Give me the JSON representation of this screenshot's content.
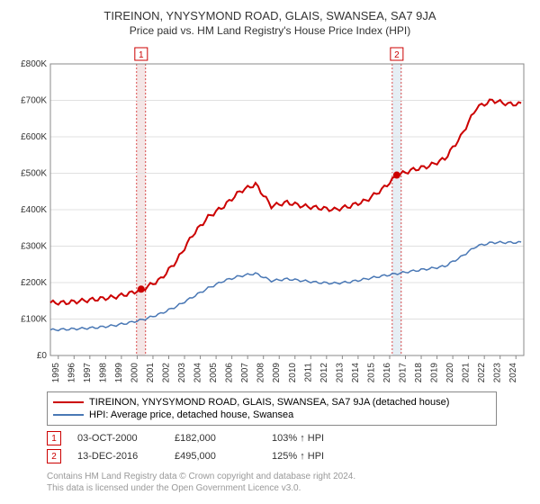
{
  "title": "TIREINON, YNYSYMOND ROAD, GLAIS, SWANSEA, SA7 9JA",
  "subtitle": "Price paid vs. HM Land Registry's House Price Index (HPI)",
  "chart": {
    "type": "line",
    "background_color": "#ffffff",
    "grid_color": "#e0e0e0",
    "axis_color": "#888888",
    "font_size_ticks": 10,
    "ylim": [
      0,
      800000
    ],
    "ytick_step": 100000,
    "ytick_labels": [
      "£0",
      "£100K",
      "£200K",
      "£300K",
      "£400K",
      "£500K",
      "£600K",
      "£700K",
      "£800K"
    ],
    "years": [
      1995,
      1996,
      1997,
      1998,
      1999,
      2000,
      2001,
      2002,
      2003,
      2004,
      2005,
      2006,
      2007,
      2008,
      2009,
      2010,
      2011,
      2012,
      2013,
      2014,
      2015,
      2016,
      2017,
      2018,
      2019,
      2020,
      2021,
      2022,
      2023,
      2024
    ],
    "series": [
      {
        "name": "price_paid",
        "label": "TIREINON, YNYSYMOND ROAD, GLAIS, SWANSEA, SA7 9JA (detached house)",
        "color": "#cc0000",
        "line_width": 2,
        "values": [
          145000,
          145000,
          150000,
          155000,
          160000,
          170000,
          185000,
          210000,
          260000,
          330000,
          380000,
          410000,
          450000,
          470000,
          410000,
          420000,
          410000,
          405000,
          400000,
          410000,
          425000,
          455000,
          495000,
          510000,
          520000,
          540000,
          600000,
          680000,
          700000,
          690000
        ]
      },
      {
        "name": "hpi",
        "label": "HPI: Average price, detached house, Swansea",
        "color": "#4a78b5",
        "line_width": 1.5,
        "values": [
          70000,
          72000,
          74000,
          77000,
          82000,
          90000,
          100000,
          115000,
          135000,
          160000,
          185000,
          205000,
          218000,
          225000,
          205000,
          210000,
          205000,
          200000,
          198000,
          202000,
          210000,
          218000,
          225000,
          232000,
          238000,
          245000,
          270000,
          300000,
          310000,
          310000
        ]
      }
    ],
    "marker_bands": [
      {
        "year": 2000.75,
        "label": "1",
        "color": "#cc0000",
        "band_fill": "#f4e6e6"
      },
      {
        "year": 2016.95,
        "label": "2",
        "color": "#cc0000",
        "band_fill": "#e6eef4"
      }
    ],
    "sale_dots": [
      {
        "year": 2000.75,
        "value": 182000,
        "color": "#cc0000"
      },
      {
        "year": 2016.95,
        "value": 495000,
        "color": "#cc0000"
      }
    ]
  },
  "legend": {
    "items": [
      {
        "color": "#cc0000",
        "label": "TIREINON, YNYSYMOND ROAD, GLAIS, SWANSEA, SA7 9JA (detached house)"
      },
      {
        "color": "#4a78b5",
        "label": "HPI: Average price, detached house, Swansea"
      }
    ]
  },
  "sales": [
    {
      "num": "1",
      "date": "03-OCT-2000",
      "price": "£182,000",
      "pct": "103% ↑ HPI"
    },
    {
      "num": "2",
      "date": "13-DEC-2016",
      "price": "£495,000",
      "pct": "125% ↑ HPI"
    }
  ],
  "footer": {
    "line1": "Contains HM Land Registry data © Crown copyright and database right 2024.",
    "line2": "This data is licensed under the Open Government Licence v3.0."
  }
}
